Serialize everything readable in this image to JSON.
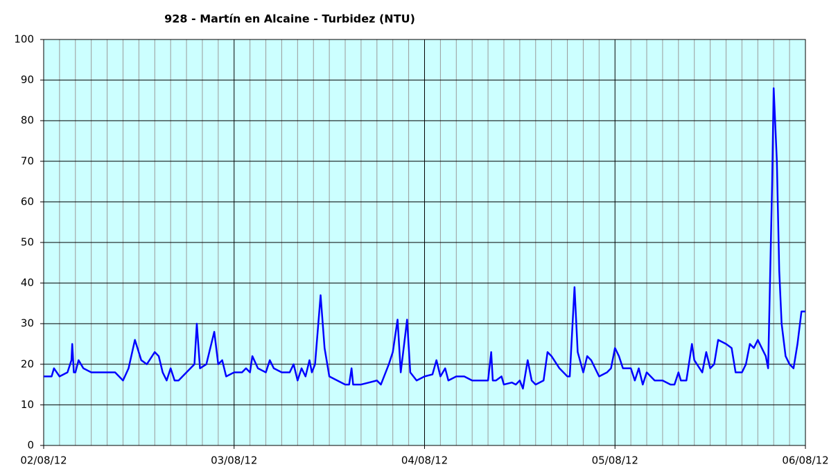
{
  "chart_data": {
    "type": "line",
    "title": "928 - Martín en Alcaine - Turbidez (NTU)",
    "x": [
      0,
      1,
      1.3,
      2,
      3,
      3.5,
      3.6,
      3.8,
      4,
      4.4,
      5,
      6,
      7,
      8,
      9,
      10,
      10.7,
      11.5,
      12.3,
      13,
      14,
      14.5,
      15,
      15.5,
      16,
      16.5,
      17,
      18,
      19,
      19.3,
      19.7,
      20.5,
      21.5,
      22,
      22.5,
      23,
      24,
      25,
      25.5,
      26,
      26.3,
      27,
      28,
      28.5,
      29,
      30,
      31,
      31.5,
      32,
      32.5,
      33,
      33.5,
      33.8,
      34.2,
      34.9,
      35.4,
      36,
      37,
      38,
      38.5,
      38.8,
      39,
      40,
      41,
      42,
      42.5,
      43.5,
      44,
      44.6,
      45,
      45.8,
      46.2,
      47,
      48,
      49,
      49.5,
      50,
      50.6,
      51,
      52,
      53,
      54,
      55,
      56,
      56.4,
      56.6,
      57,
      57.7,
      58,
      59,
      59.5,
      60,
      60.4,
      61,
      61.5,
      62,
      63,
      63.5,
      64,
      65,
      66,
      66.3,
      66.9,
      67.3,
      68,
      68.5,
      69,
      70,
      71,
      71.5,
      72,
      72.5,
      73,
      74,
      74.5,
      75,
      75.5,
      76,
      77,
      78,
      79,
      79.5,
      80,
      80.3,
      81,
      81.7,
      82,
      83,
      83.5,
      84,
      84.5,
      85,
      86,
      86.7,
      87.2,
      88,
      88.5,
      89,
      89.5,
      90,
      91,
      91.3,
      91.8,
      92,
      92.4,
      92.7,
      93,
      93.5,
      94,
      94.5,
      95,
      95.5,
      96
    ],
    "series": [
      {
        "name": "Turbidez",
        "color": "#0000ff",
        "values": [
          17,
          17,
          19,
          17,
          18,
          21,
          25,
          18,
          18,
          21,
          19,
          18,
          18,
          18,
          18,
          16,
          19,
          26,
          21,
          20,
          23,
          22,
          18,
          16,
          19,
          16,
          16,
          18,
          20,
          30,
          19,
          20,
          28,
          20,
          21,
          17,
          18,
          18,
          19,
          18,
          22,
          19,
          18,
          21,
          19,
          18,
          18,
          20,
          16,
          19,
          17,
          21,
          18,
          20,
          37,
          24,
          17,
          16,
          15,
          15,
          19,
          15,
          15,
          15.5,
          16,
          15,
          20,
          23,
          31,
          18,
          31,
          18,
          16,
          17,
          17.5,
          21,
          17,
          19,
          16,
          17,
          17,
          16,
          16,
          16,
          23,
          16,
          16,
          17,
          15,
          15.5,
          15,
          16,
          14,
          21,
          16,
          15,
          16,
          23,
          22,
          19,
          17,
          17,
          39,
          23,
          18,
          22,
          21,
          17,
          18,
          19,
          24,
          22,
          19,
          19,
          16,
          19,
          15,
          18,
          16,
          16,
          15,
          15,
          18,
          16,
          16,
          25,
          21,
          18,
          23,
          19,
          20,
          26,
          25,
          24,
          18,
          18,
          20,
          25,
          24,
          26,
          22,
          19,
          64,
          88,
          70,
          43,
          30,
          22,
          20,
          19,
          25,
          33,
          33
        ]
      }
    ],
    "xlim": [
      0,
      96
    ],
    "xticks": [
      {
        "value": 0,
        "label": "02/08/12"
      },
      {
        "value": 24,
        "label": "03/08/12"
      },
      {
        "value": 48,
        "label": "04/08/12"
      },
      {
        "value": 72,
        "label": "05/08/12"
      },
      {
        "value": 96,
        "label": "06/08/12"
      }
    ],
    "xminorticks": [
      2,
      4,
      6,
      8,
      10,
      12,
      14,
      16,
      18,
      20,
      22,
      26,
      28,
      30,
      32,
      34,
      36,
      38,
      40,
      42,
      44,
      46,
      50,
      52,
      54,
      56,
      58,
      60,
      62,
      64,
      66,
      68,
      70,
      74,
      76,
      78,
      80,
      82,
      84,
      86,
      88,
      90,
      92,
      94
    ],
    "ylim": [
      0,
      100
    ],
    "yticks": [
      0,
      10,
      20,
      30,
      40,
      50,
      60,
      70,
      80,
      90,
      100
    ],
    "grid": true,
    "background": "#ccffff"
  }
}
